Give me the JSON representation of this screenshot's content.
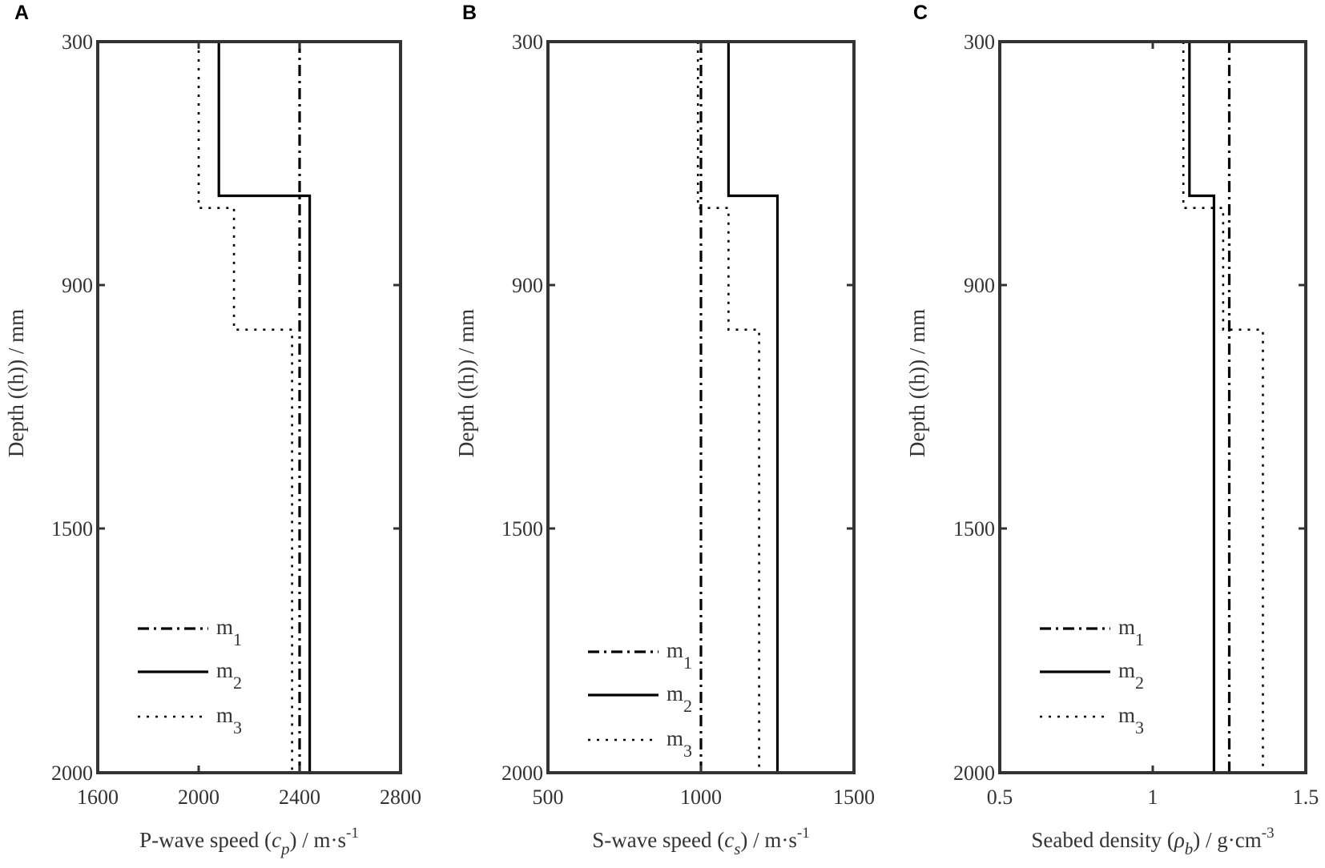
{
  "figure": {
    "panel_letters": [
      "A",
      "B",
      "C"
    ]
  },
  "chart_data": [
    {
      "panel": "A",
      "type": "line",
      "title": "",
      "xlabel": "P-wave speed (c_p) / m·s^-1",
      "xlabel_parts": {
        "pre": "P-wave speed (",
        "sym": "c",
        "sub": "p",
        "post": ") / m·s",
        "sup": "-1"
      },
      "ylabel": "Depth ((h)) / mm",
      "xlim": [
        1600,
        2800
      ],
      "xticks": [
        1600,
        2000,
        2400,
        2800
      ],
      "ylim": [
        300,
        2000
      ],
      "yticks": [
        300,
        900,
        1500,
        2000
      ],
      "y_inverted": true,
      "grid": false,
      "legend_position": "lower left",
      "legend": [
        "m1",
        "m2",
        "m3"
      ],
      "series": [
        {
          "name": "m1",
          "style": "dash-dot",
          "points": [
            [
              2400,
              300
            ],
            [
              2400,
              2000
            ]
          ]
        },
        {
          "name": "m2",
          "style": "solid",
          "points": [
            [
              2080,
              300
            ],
            [
              2080,
              680
            ],
            [
              2440,
              680
            ],
            [
              2440,
              2000
            ]
          ]
        },
        {
          "name": "m3",
          "style": "dotted",
          "points": [
            [
              2000,
              300
            ],
            [
              2000,
              710
            ],
            [
              2140,
              710
            ],
            [
              2140,
              1010
            ],
            [
              2370,
              1010
            ],
            [
              2370,
              2000
            ]
          ]
        }
      ]
    },
    {
      "panel": "B",
      "type": "line",
      "title": "",
      "xlabel": "S-wave speed (c_s) / m·s^-1",
      "xlabel_parts": {
        "pre": "S-wave speed (",
        "sym": "c",
        "sub": "s",
        "post": ") / m·s",
        "sup": "-1"
      },
      "ylabel": "Depth ((h)) / mm",
      "xlim": [
        500,
        1500
      ],
      "xticks": [
        500,
        1000,
        1500
      ],
      "ylim": [
        300,
        2000
      ],
      "yticks": [
        300,
        900,
        1500,
        2000
      ],
      "y_inverted": true,
      "grid": false,
      "legend_position": "lower left",
      "legend": [
        "m1",
        "m2",
        "m3"
      ],
      "series": [
        {
          "name": "m1",
          "style": "dash-dot",
          "points": [
            [
              1000,
              300
            ],
            [
              1000,
              2000
            ]
          ]
        },
        {
          "name": "m2",
          "style": "solid",
          "points": [
            [
              1090,
              300
            ],
            [
              1090,
              680
            ],
            [
              1250,
              680
            ],
            [
              1250,
              2000
            ]
          ]
        },
        {
          "name": "m3",
          "style": "dotted",
          "points": [
            [
              990,
              300
            ],
            [
              990,
              710
            ],
            [
              1090,
              710
            ],
            [
              1090,
              1010
            ],
            [
              1190,
              1010
            ],
            [
              1190,
              2000
            ]
          ]
        }
      ]
    },
    {
      "panel": "C",
      "type": "line",
      "title": "",
      "xlabel": "Seabed density (ρ_b) / g·cm^-3",
      "xlabel_parts": {
        "pre": "Seabed density (",
        "sym": "ρ",
        "sub": "b",
        "post": ") / g·cm",
        "sup": "-3"
      },
      "ylabel": "Depth ((h)) / mm",
      "xlim": [
        0.5,
        1.5
      ],
      "xticks": [
        0.5,
        1,
        1.5
      ],
      "ylim": [
        300,
        2000
      ],
      "yticks": [
        300,
        900,
        1500,
        2000
      ],
      "y_inverted": true,
      "grid": false,
      "legend_position": "lower left",
      "legend": [
        "m1",
        "m2",
        "m3"
      ],
      "series": [
        {
          "name": "m1",
          "style": "dash-dot",
          "points": [
            [
              1.25,
              300
            ],
            [
              1.25,
              2000
            ]
          ]
        },
        {
          "name": "m2",
          "style": "solid",
          "points": [
            [
              1.12,
              300
            ],
            [
              1.12,
              680
            ],
            [
              1.2,
              680
            ],
            [
              1.2,
              2000
            ]
          ]
        },
        {
          "name": "m3",
          "style": "dotted",
          "points": [
            [
              1.1,
              300
            ],
            [
              1.1,
              710
            ],
            [
              1.23,
              710
            ],
            [
              1.23,
              1010
            ],
            [
              1.36,
              1010
            ],
            [
              1.36,
              2000
            ]
          ]
        }
      ]
    }
  ]
}
